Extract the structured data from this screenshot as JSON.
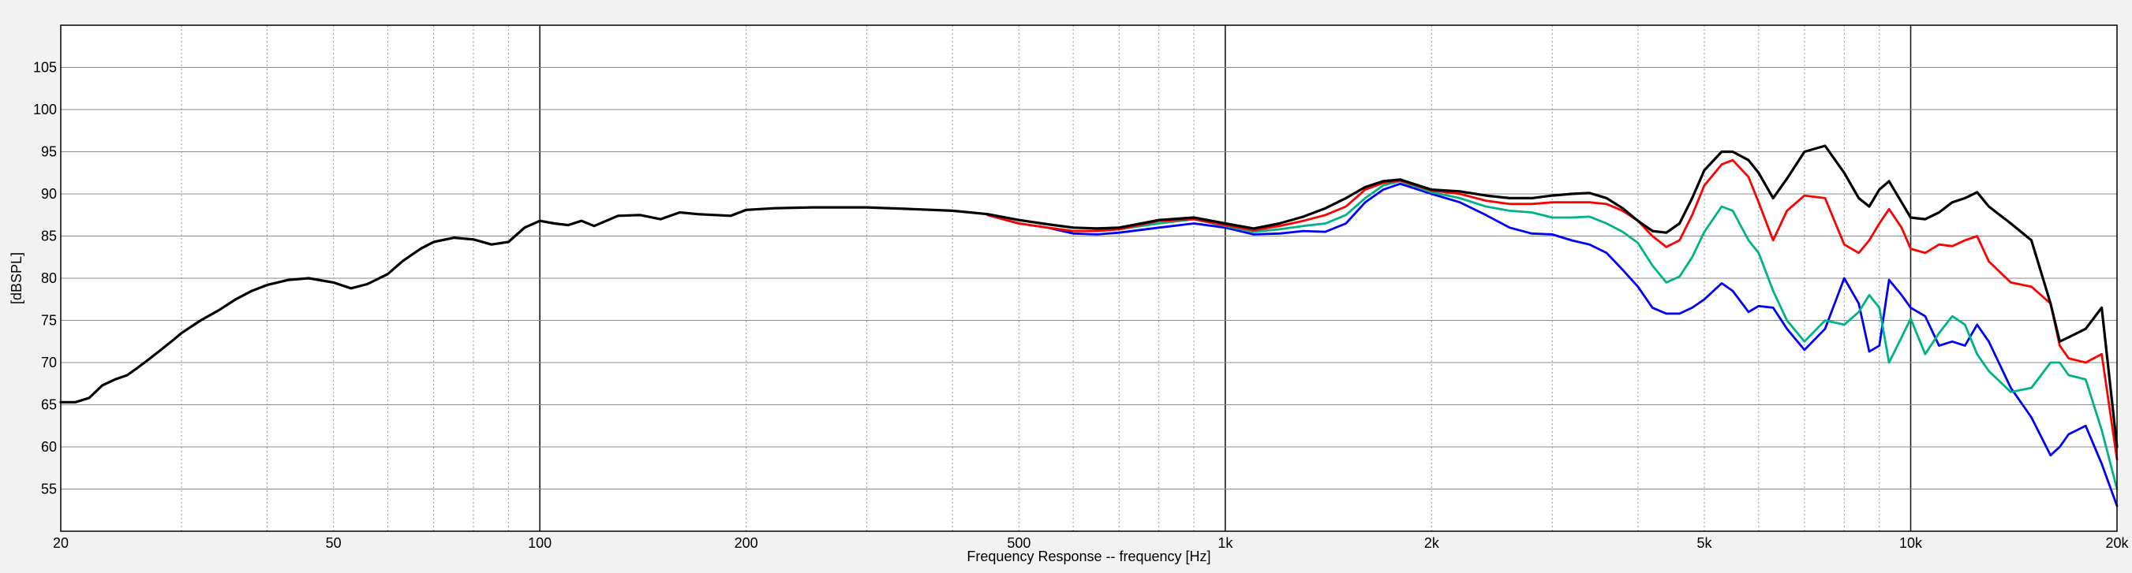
{
  "chart_data": {
    "type": "line",
    "title": "",
    "xlabel": "Frequency Response -- frequency [Hz]",
    "ylabel": "[dBSPL]",
    "xscale": "log",
    "xlim": [
      20,
      20000
    ],
    "ylim": [
      50,
      110
    ],
    "grid": true,
    "legend": "none",
    "x_ticks": [
      {
        "value": 20,
        "label": "20"
      },
      {
        "value": 50,
        "label": "50"
      },
      {
        "value": 100,
        "label": "100"
      },
      {
        "value": 200,
        "label": "200"
      },
      {
        "value": 500,
        "label": "500"
      },
      {
        "value": 1000,
        "label": "1k"
      },
      {
        "value": 2000,
        "label": "2k"
      },
      {
        "value": 5000,
        "label": "5k"
      },
      {
        "value": 10000,
        "label": "10k"
      },
      {
        "value": 20000,
        "label": "20k"
      }
    ],
    "y_ticks": [
      {
        "value": 55,
        "label": "55"
      },
      {
        "value": 60,
        "label": "60"
      },
      {
        "value": 65,
        "label": "65"
      },
      {
        "value": 70,
        "label": "70"
      },
      {
        "value": 75,
        "label": "75"
      },
      {
        "value": 80,
        "label": "80"
      },
      {
        "value": 85,
        "label": "85"
      },
      {
        "value": 90,
        "label": "90"
      },
      {
        "value": 95,
        "label": "95"
      },
      {
        "value": 100,
        "label": "100"
      },
      {
        "value": 105,
        "label": "105"
      }
    ],
    "series": [
      {
        "color": "#0000ff",
        "x": [
          450,
          500,
          550,
          600,
          650,
          700,
          800,
          900,
          1000,
          1100,
          1200,
          1300,
          1400,
          1500,
          1600,
          1700,
          1800,
          2000,
          2200,
          2400,
          2600,
          2800,
          3000,
          3200,
          3400,
          3600,
          3800,
          4000,
          4200,
          4400,
          4600,
          4800,
          5000,
          5300,
          5500,
          5800,
          6000,
          6300,
          6600,
          7000,
          7500,
          8000,
          8400,
          8700,
          9000,
          9300,
          9700,
          10000,
          10500,
          11000,
          11500,
          12000,
          12500,
          13000,
          14000,
          15000,
          16000,
          16500,
          17000,
          18000,
          19000,
          20000
        ],
        "y": [
          87.5,
          86.5,
          86,
          85.3,
          85.2,
          85.4,
          86,
          86.5,
          86,
          85.2,
          85.3,
          85.6,
          85.5,
          86.5,
          89,
          90.5,
          91.2,
          90,
          89,
          87.5,
          86,
          85.3,
          85.2,
          84.5,
          84,
          83,
          81,
          79,
          76.5,
          75.8,
          75.8,
          76.5,
          77.5,
          79.4,
          78.5,
          76,
          76.7,
          76.5,
          74,
          71.5,
          74,
          80,
          77,
          71.3,
          72,
          79.8,
          78,
          76.5,
          75.5,
          72,
          72.5,
          72,
          74.5,
          72.5,
          67,
          63.5,
          59,
          60,
          61.5,
          62.5,
          58,
          53
        ]
      },
      {
        "color": "#00b386",
        "x": [
          450,
          500,
          550,
          600,
          650,
          700,
          800,
          900,
          1000,
          1100,
          1200,
          1300,
          1400,
          1500,
          1600,
          1700,
          1800,
          2000,
          2200,
          2400,
          2600,
          2800,
          3000,
          3200,
          3400,
          3600,
          3800,
          4000,
          4200,
          4400,
          4600,
          4800,
          5000,
          5300,
          5500,
          5800,
          6000,
          6300,
          6600,
          7000,
          7500,
          8000,
          8400,
          8700,
          9000,
          9300,
          9700,
          10000,
          10500,
          11000,
          11500,
          12000,
          12500,
          13000,
          14000,
          15000,
          16000,
          16500,
          17000,
          18000,
          19000,
          20000
        ],
        "y": [
          87.5,
          86.5,
          86,
          85.6,
          85.6,
          85.8,
          86.5,
          87,
          86.2,
          85.5,
          85.8,
          86.2,
          86.5,
          87.5,
          89.5,
          91,
          91.5,
          90.2,
          89.5,
          88.5,
          88,
          87.8,
          87.2,
          87.2,
          87.3,
          86.5,
          85.5,
          84.2,
          81.5,
          79.5,
          80.2,
          82.5,
          85.5,
          88.5,
          88,
          84.5,
          83,
          78.5,
          75,
          72.5,
          75,
          74.5,
          76,
          78,
          76.5,
          70,
          73,
          75.2,
          71,
          73.5,
          75.5,
          74.5,
          71,
          69,
          66.5,
          67,
          70,
          70,
          68.5,
          68,
          62,
          55
        ]
      },
      {
        "color": "#ff0000",
        "x": [
          450,
          500,
          550,
          600,
          650,
          700,
          800,
          900,
          1000,
          1100,
          1200,
          1300,
          1400,
          1500,
          1600,
          1700,
          1800,
          2000,
          2200,
          2400,
          2600,
          2800,
          3000,
          3200,
          3400,
          3600,
          3800,
          4000,
          4200,
          4400,
          4600,
          4800,
          5000,
          5300,
          5500,
          5800,
          6000,
          6300,
          6600,
          7000,
          7500,
          8000,
          8400,
          8700,
          9000,
          9300,
          9700,
          10000,
          10500,
          11000,
          11500,
          12000,
          12500,
          13000,
          14000,
          15000,
          16000,
          16500,
          17000,
          18000,
          19000,
          20000
        ],
        "y": [
          87.5,
          86.5,
          86,
          85.6,
          85.6,
          85.8,
          86.8,
          87,
          86.3,
          85.7,
          86.2,
          86.8,
          87.5,
          88.5,
          90.5,
          91.3,
          91.6,
          90.4,
          90,
          89.2,
          88.8,
          88.8,
          89,
          89,
          89,
          88.8,
          88,
          86.8,
          85,
          83.7,
          84.5,
          87.5,
          91,
          93.5,
          94,
          92,
          89,
          84.5,
          88,
          89.8,
          89.5,
          84,
          83,
          84.5,
          86.5,
          88.2,
          86,
          83.5,
          83,
          84,
          83.8,
          84.5,
          85,
          82,
          79.5,
          79,
          77,
          72,
          70.5,
          70,
          71,
          58.5
        ]
      },
      {
        "color": "#000000",
        "x": [
          20,
          21,
          22,
          23,
          24,
          25,
          26,
          27,
          28,
          29,
          30,
          32,
          34,
          36,
          38,
          40,
          43,
          46,
          50,
          53,
          56,
          60,
          63,
          67,
          70,
          75,
          80,
          85,
          90,
          95,
          100,
          105,
          110,
          115,
          120,
          130,
          140,
          150,
          160,
          170,
          180,
          190,
          200,
          220,
          250,
          280,
          300,
          350,
          400,
          450,
          500,
          550,
          600,
          650,
          700,
          800,
          900,
          1000,
          1100,
          1200,
          1300,
          1400,
          1500,
          1600,
          1700,
          1800,
          2000,
          2200,
          2400,
          2600,
          2800,
          3000,
          3200,
          3400,
          3600,
          3800,
          4000,
          4200,
          4400,
          4600,
          4800,
          5000,
          5300,
          5500,
          5800,
          6000,
          6300,
          6600,
          7000,
          7500,
          8000,
          8400,
          8700,
          9000,
          9300,
          9700,
          10000,
          10500,
          11000,
          11500,
          12000,
          12500,
          13000,
          14000,
          15000,
          16000,
          16500,
          17000,
          18000,
          19000,
          20000
        ],
        "y": [
          65.3,
          65.3,
          65.8,
          67.3,
          68,
          68.5,
          69.5,
          70.5,
          71.5,
          72.5,
          73.5,
          75,
          76.2,
          77.5,
          78.5,
          79.2,
          79.8,
          80,
          79.5,
          78.8,
          79.3,
          80.5,
          82,
          83.5,
          84.3,
          84.8,
          84.6,
          84,
          84.3,
          86,
          86.8,
          86.5,
          86.3,
          86.8,
          86.2,
          87.4,
          87.5,
          87,
          87.8,
          87.6,
          87.5,
          87.4,
          88.1,
          88.3,
          88.4,
          88.4,
          88.4,
          88.2,
          88,
          87.6,
          86.9,
          86.4,
          86,
          85.9,
          86,
          86.9,
          87.2,
          86.5,
          85.9,
          86.5,
          87.3,
          88.3,
          89.5,
          90.8,
          91.5,
          91.7,
          90.5,
          90.3,
          89.8,
          89.5,
          89.5,
          89.8,
          90,
          90.1,
          89.5,
          88.3,
          86.8,
          85.6,
          85.4,
          86.5,
          89.5,
          92.8,
          95,
          95,
          94,
          92.5,
          89.5,
          91.8,
          95,
          95.7,
          92.5,
          89.5,
          88.5,
          90.5,
          91.5,
          89,
          87.2,
          87,
          87.8,
          89,
          89.5,
          90.2,
          88.5,
          86.5,
          84.5,
          77,
          72.5,
          73,
          74,
          76.5,
          60
        ]
      }
    ]
  }
}
